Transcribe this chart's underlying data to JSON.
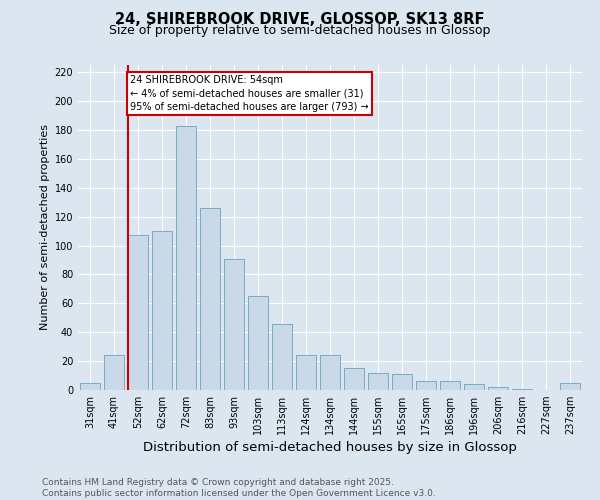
{
  "title_line1": "24, SHIREBROOK DRIVE, GLOSSOP, SK13 8RF",
  "title_line2": "Size of property relative to semi-detached houses in Glossop",
  "xlabel": "Distribution of semi-detached houses by size in Glossop",
  "ylabel": "Number of semi-detached properties",
  "categories": [
    "31sqm",
    "41sqm",
    "52sqm",
    "62sqm",
    "72sqm",
    "83sqm",
    "93sqm",
    "103sqm",
    "113sqm",
    "124sqm",
    "134sqm",
    "144sqm",
    "155sqm",
    "165sqm",
    "175sqm",
    "186sqm",
    "196sqm",
    "206sqm",
    "216sqm",
    "227sqm",
    "237sqm"
  ],
  "values": [
    5,
    24,
    107,
    110,
    183,
    126,
    91,
    65,
    46,
    24,
    24,
    15,
    12,
    11,
    6,
    6,
    4,
    2,
    1,
    0,
    5
  ],
  "bar_color": "#c9d9e8",
  "bar_edge_color": "#7aaac8",
  "highlight_line_color": "#cc0000",
  "highlight_bar_index": 2,
  "annotation_text": "24 SHIREBROOK DRIVE: 54sqm\n← 4% of semi-detached houses are smaller (31)\n95% of semi-detached houses are larger (793) →",
  "annotation_box_facecolor": "#ffffff",
  "annotation_box_edgecolor": "#cc0000",
  "ylim": [
    0,
    225
  ],
  "yticks": [
    0,
    20,
    40,
    60,
    80,
    100,
    120,
    140,
    160,
    180,
    200,
    220
  ],
  "background_color": "#dce6f0",
  "plot_bg_color": "#dce6f0",
  "footer_line1": "Contains HM Land Registry data © Crown copyright and database right 2025.",
  "footer_line2": "Contains public sector information licensed under the Open Government Licence v3.0.",
  "title_fontsize": 10.5,
  "subtitle_fontsize": 9,
  "ylabel_fontsize": 8,
  "xlabel_fontsize": 9.5,
  "tick_fontsize": 7,
  "annotation_fontsize": 7,
  "footer_fontsize": 6.5
}
